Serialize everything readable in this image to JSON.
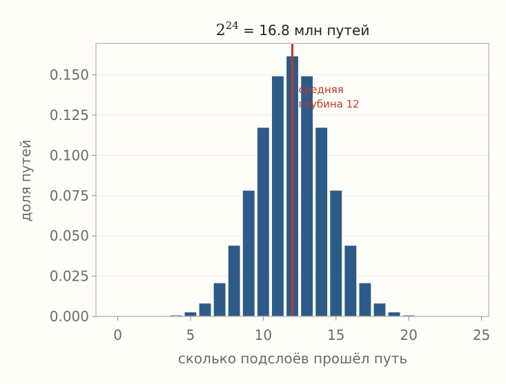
{
  "chart_data": {
    "type": "bar",
    "title_base": "2",
    "title_exp": "24",
    "title_rest": " = 16.8 млн путей",
    "xlabel": "сколько подслоёв прошёл путь",
    "ylabel": "доля путей",
    "xlim": [
      -1.5,
      25.5
    ],
    "ylim": [
      0,
      0.1695
    ],
    "xticks": [
      0,
      5,
      10,
      15,
      20,
      25
    ],
    "yticks": [
      0,
      0.025,
      0.05,
      0.075,
      0.1,
      0.125,
      0.15
    ],
    "ytick_labels": [
      "0.000",
      "0.025",
      "0.050",
      "0.075",
      "0.100",
      "0.125",
      "0.150"
    ],
    "x": [
      0,
      1,
      2,
      3,
      4,
      5,
      6,
      7,
      8,
      9,
      10,
      11,
      12,
      13,
      14,
      15,
      16,
      17,
      18,
      19,
      20,
      21,
      22,
      23,
      24
    ],
    "values": [
      1e-07,
      1.4e-06,
      1.64e-05,
      0.0001209,
      0.0006348,
      0.0025391,
      0.0080404,
      0.0206753,
      0.0439351,
      0.0781068,
      0.1171602,
      0.149113,
      0.1615391,
      0.149113,
      0.1171602,
      0.0781068,
      0.0439351,
      0.0206753,
      0.0080404,
      0.0025391,
      0.0006348,
      0.0001209,
      1.64e-05,
      1.4e-06,
      1e-07
    ],
    "mean_line": {
      "x": 12,
      "label_line1": "средняя",
      "label_line2": "глубина 12"
    },
    "grid": "horizontal",
    "colors": {
      "bar": "#2e5a88",
      "mean": "#c0392b",
      "background": "#fefdf7"
    }
  }
}
